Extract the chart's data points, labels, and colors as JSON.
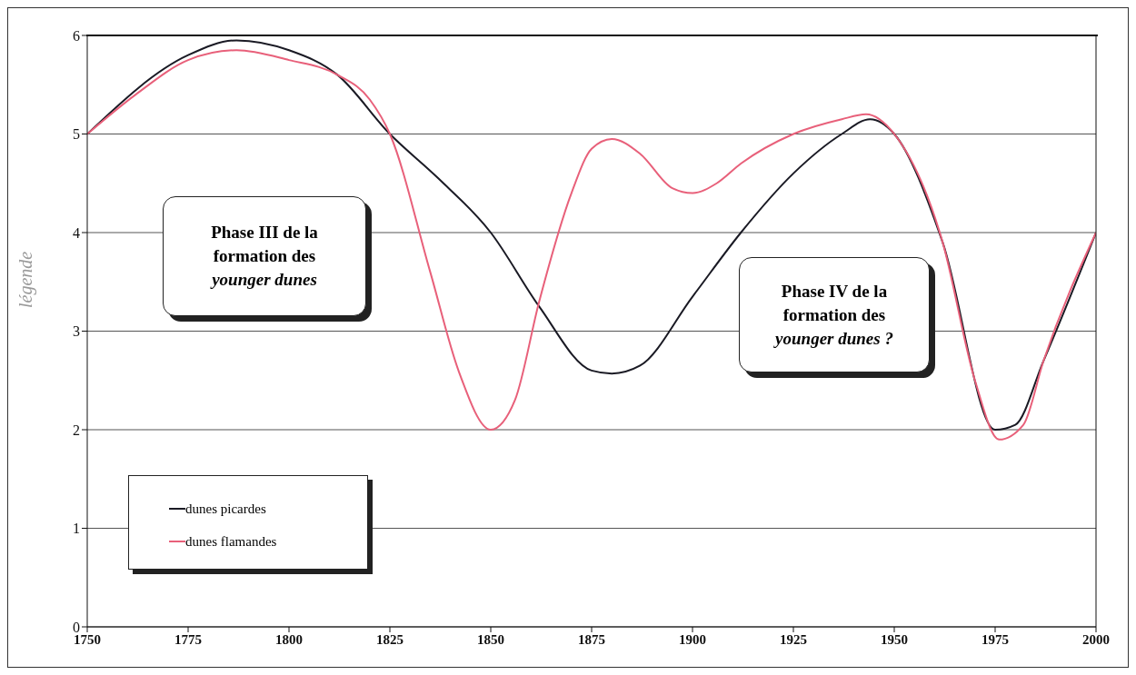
{
  "chart_data": {
    "type": "line",
    "xlim": [
      1750,
      2000
    ],
    "xticks": [
      1750,
      1775,
      1800,
      1825,
      1850,
      1875,
      1900,
      1925,
      1950,
      1975,
      2000
    ],
    "ylim": [
      0,
      6
    ],
    "yticks": [
      0,
      1,
      2,
      3,
      4,
      5,
      6
    ],
    "grid": "y",
    "legend": "bottom left",
    "annotations": [
      "Phase III de la formation des younger dunes",
      "Phase IV de la formation des younger dunes ?",
      "légende"
    ],
    "series": [
      {
        "name": "dunes picardes",
        "color": "#1a1a24",
        "x": [
          1750,
          1775,
          1787,
          1800,
          1812,
          1825,
          1837,
          1850,
          1862,
          1875,
          1880,
          1887,
          1900,
          1912,
          1925,
          1937,
          1944,
          1950,
          1962,
          1975,
          1980,
          1987,
          2000
        ],
        "values": [
          5,
          5.8,
          5.95,
          5.85,
          5.6,
          5.0,
          4.55,
          4.0,
          3.25,
          2.6,
          2.57,
          2.65,
          3.35,
          4.0,
          4.6,
          5.0,
          5.15,
          5.0,
          3.9,
          2.0,
          2.05,
          2.7,
          4.0
        ]
      },
      {
        "name": "dunes flamandes",
        "color": "#e8607a",
        "x": [
          1750,
          1762,
          1775,
          1787,
          1800,
          1812,
          1820,
          1825,
          1835,
          1842,
          1850,
          1856,
          1862,
          1870,
          1875,
          1880,
          1887,
          1895,
          1900,
          1906,
          1912,
          1925,
          1937,
          1943,
          1950,
          1962,
          1970,
          1976,
          1982,
          1987,
          2000
        ],
        "values": [
          5,
          5.4,
          5.75,
          5.85,
          5.75,
          5.6,
          5.35,
          5.0,
          3.6,
          2.6,
          2.0,
          2.3,
          3.3,
          4.4,
          4.85,
          4.95,
          4.8,
          4.45,
          4.4,
          4.5,
          4.7,
          5.0,
          5.15,
          5.2,
          5.0,
          3.9,
          2.5,
          1.9,
          2.05,
          2.7,
          4.0
        ]
      }
    ]
  }
}
